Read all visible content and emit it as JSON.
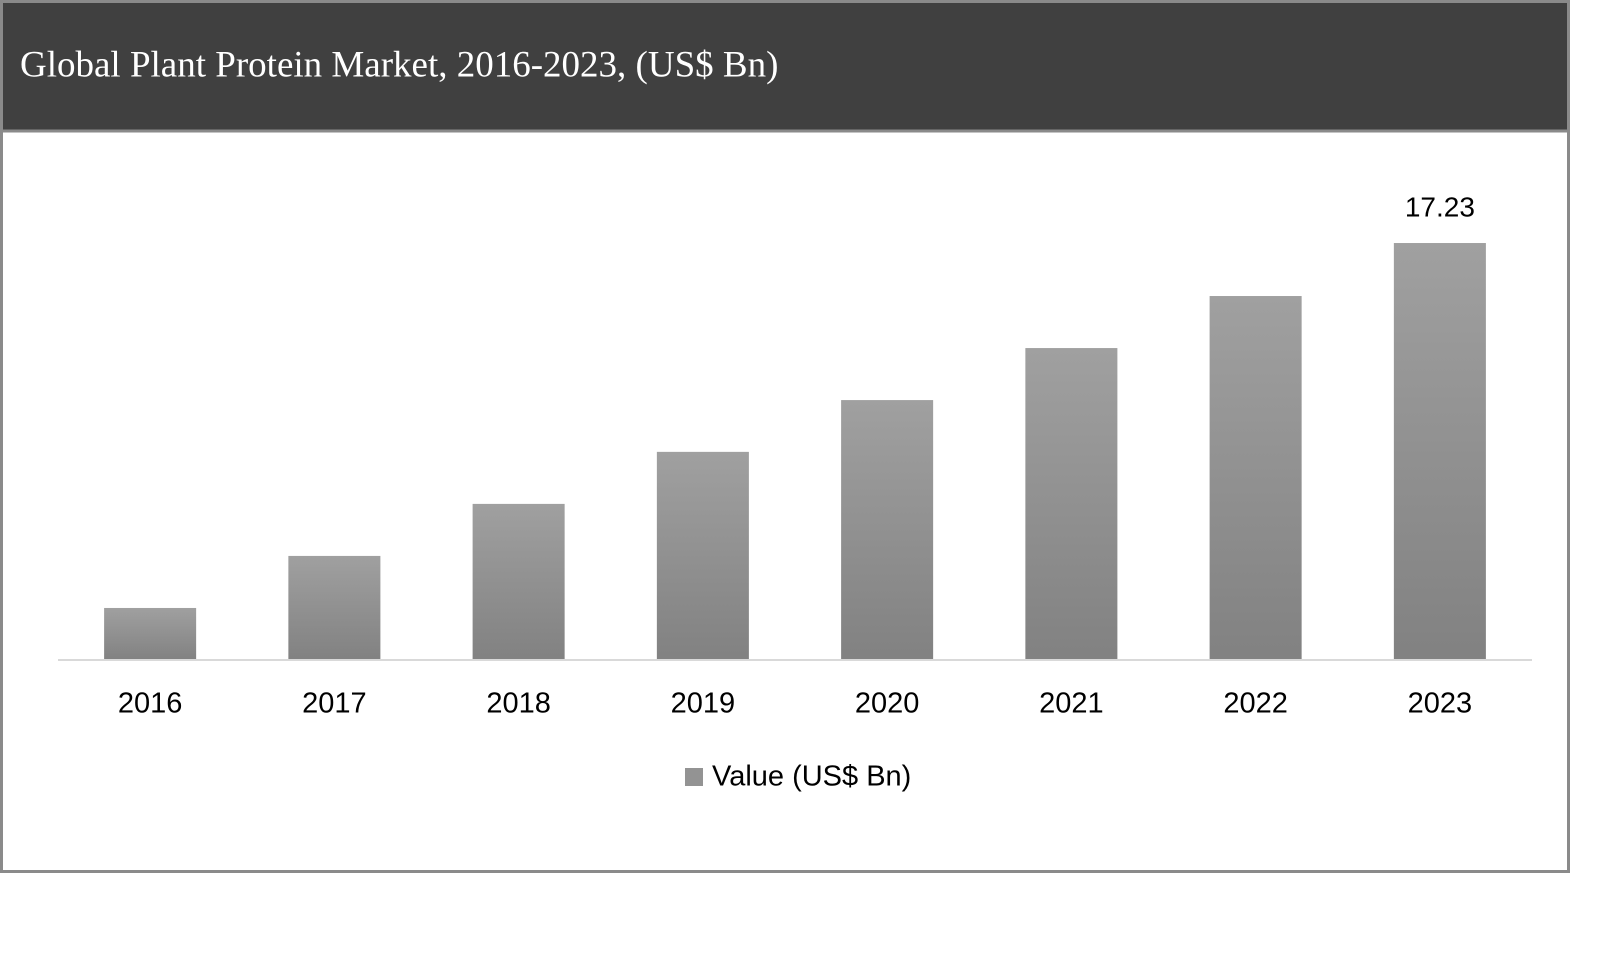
{
  "chart_data": {
    "type": "bar",
    "title": "Global Plant Protein Market, 2016-2023, (US$ Bn)",
    "categories": [
      "2016",
      "2017",
      "2018",
      "2019",
      "2020",
      "2021",
      "2022",
      "2023"
    ],
    "series": [
      {
        "name": "Value (US$ Bn)",
        "color": "#939393",
        "values": [
          2.15,
          4.3,
          6.45,
          8.6,
          10.74,
          12.89,
          15.04,
          17.23
        ]
      }
    ],
    "data_label_indices": [
      7
    ],
    "ylim": [
      0,
      20
    ],
    "legend": "bottom"
  }
}
